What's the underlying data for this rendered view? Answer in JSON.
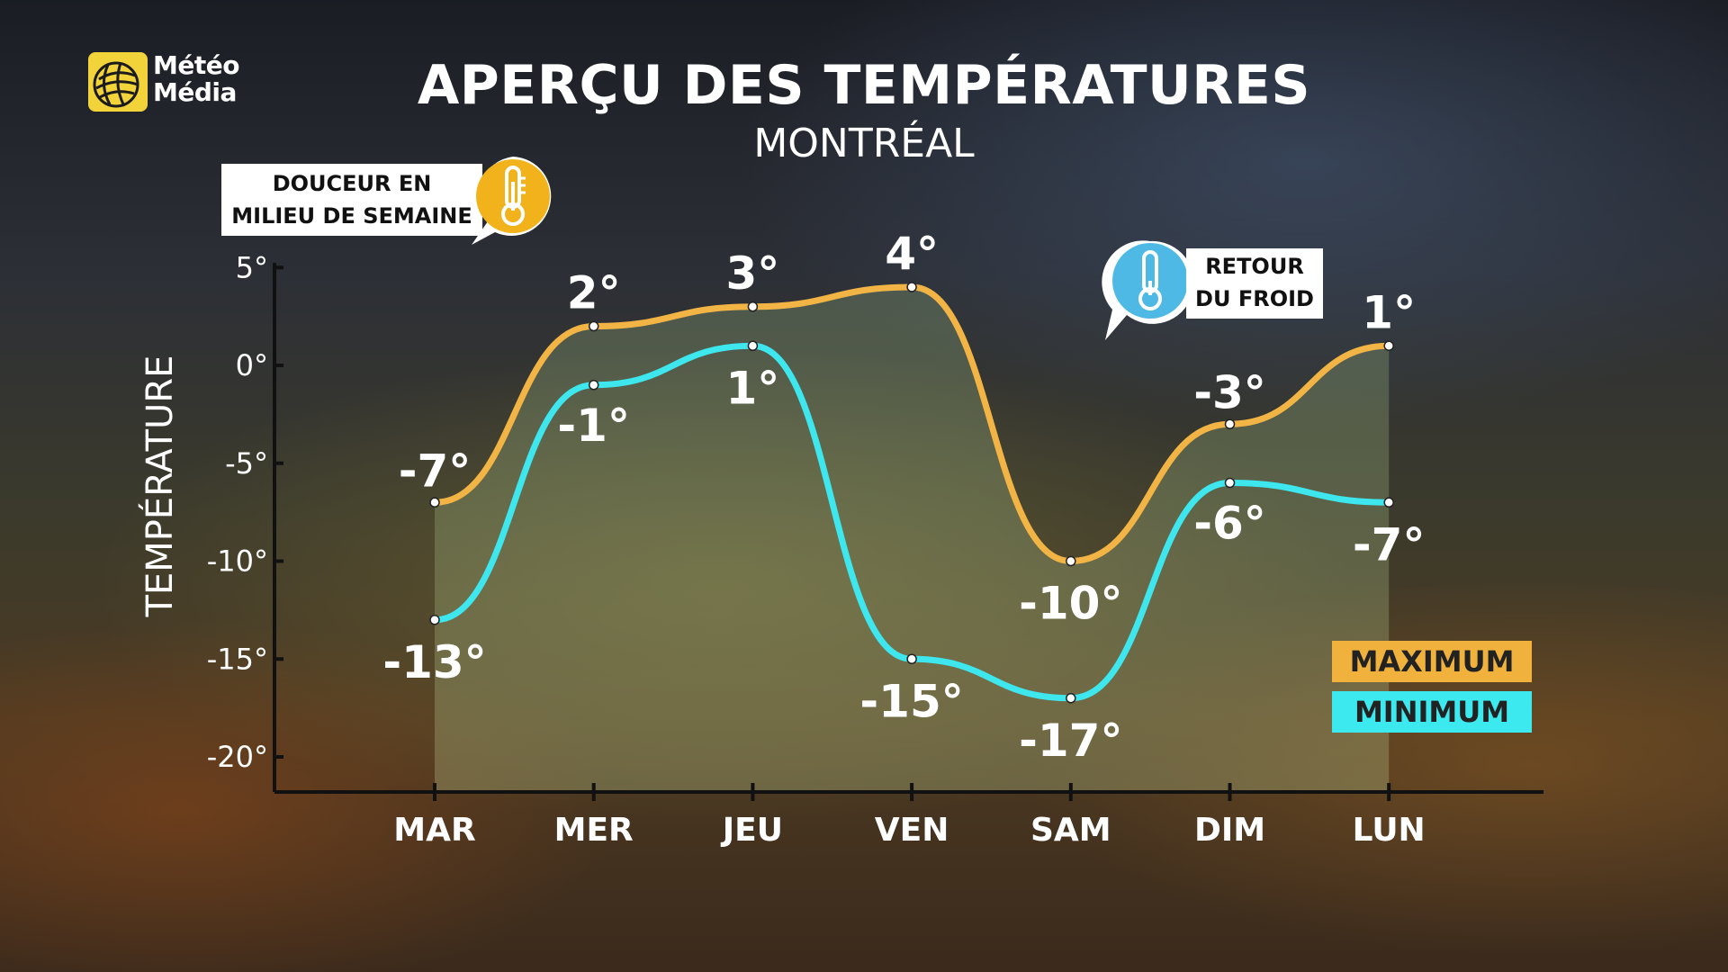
{
  "brand": {
    "line1": "Météo",
    "line2": "Média"
  },
  "header": {
    "title": "APERÇU DES TEMPÉRATURES",
    "subtitle": "MONTRÉAL"
  },
  "callouts": {
    "left": {
      "line1": "DOUCEUR EN",
      "line2": "MILIEU DE SEMAINE",
      "icon": "thermometer-icon",
      "color": "#f2b21c"
    },
    "right": {
      "line1": "RETOUR",
      "line2": "DU FROID",
      "icon": "thermometer-icon",
      "color": "#4fb9e6"
    }
  },
  "legend": {
    "max_label": "MAXIMUM",
    "min_label": "MINIMUM"
  },
  "colors": {
    "max": "#f2b445",
    "min": "#3ee6ee",
    "axis": "#111111"
  },
  "chart_data": {
    "type": "line",
    "ylabel": "TEMPÉRATURE",
    "ylim": [
      -22,
      7
    ],
    "yticks": [
      5,
      0,
      -5,
      -10,
      -15,
      -20
    ],
    "ytick_labels": [
      "5°",
      "0°",
      "-5°",
      "-10°",
      "-15°",
      "-20°"
    ],
    "categories": [
      "MAR",
      "MER",
      "JEU",
      "VEN",
      "SAM",
      "DIM",
      "LUN"
    ],
    "series": [
      {
        "name": "MAXIMUM",
        "values": [
          -7,
          2,
          3,
          4,
          -10,
          -3,
          1
        ],
        "labels": [
          "-7°",
          "2°",
          "3°",
          "4°",
          "-10°",
          "-3°",
          "1°"
        ]
      },
      {
        "name": "MINIMUM",
        "values": [
          -13,
          -1,
          1,
          -15,
          -17,
          -6,
          -7
        ],
        "labels": [
          "-13°",
          "-1°",
          "1°",
          "-15°",
          "-17°",
          "-6°",
          "-7°"
        ]
      }
    ],
    "legend_position": "right",
    "grid": false
  }
}
